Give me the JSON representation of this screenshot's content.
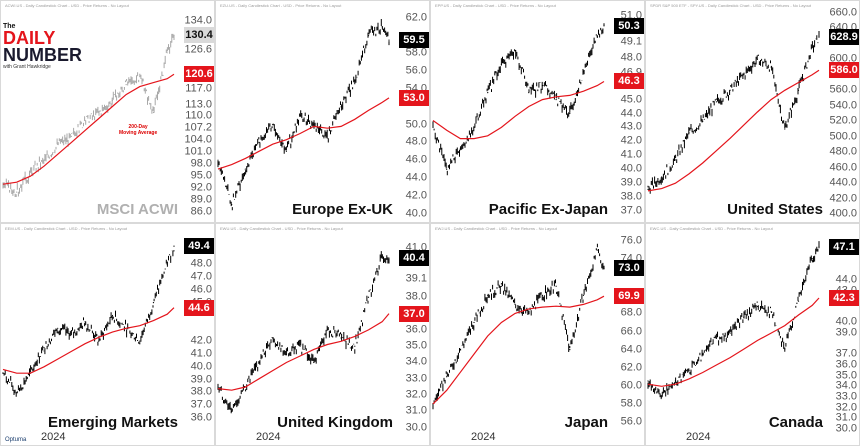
{
  "logo": {
    "line1": "The",
    "line2a": "DAILY",
    "line2b": "NUMBER",
    "line3": "with Grant Hawkridge"
  },
  "footer": "Optuma",
  "colors": {
    "price": "#000000",
    "ma": "#e4151c",
    "name_light": "#b0b0b0"
  },
  "chart_data": [
    {
      "type": "line",
      "name": "MSCI ACWI",
      "header": "ACWI.US - Daily Candlestick Chart - USD - Price Returns - No Layout",
      "year_label": "",
      "annotation": "200-Day\nMoving Average",
      "ylim": [
        84.5,
        137
      ],
      "ticks": [
        134.0,
        130.4,
        126.6,
        120.6,
        117.0,
        113.0,
        110.0,
        107.2,
        104.0,
        101.0,
        98.0,
        95.0,
        92.0,
        89.0,
        86.0
      ],
      "price_tag": 130.4,
      "ma_tag": 120.6,
      "x": [
        0,
        8,
        16,
        24,
        32,
        40,
        48,
        56,
        64,
        72,
        80,
        88,
        96,
        100
      ],
      "price": [
        93,
        91,
        96,
        99,
        103,
        105,
        109,
        111,
        114,
        118,
        120,
        111,
        126,
        130.4
      ],
      "ma": [
        93,
        93.5,
        95,
        97.5,
        100.5,
        103.5,
        106.5,
        109.5,
        112.5,
        115.5,
        117.5,
        118.5,
        119.5,
        120.6
      ]
    },
    {
      "type": "line",
      "name": "Europe Ex-UK",
      "header": "EZU.US - Daily Candlestick Chart - USD - Price Returns - No Layout",
      "year_label": "",
      "ylim": [
        39.5,
        63
      ],
      "ticks": [
        62.0,
        59.5,
        58.0,
        56.0,
        54.0,
        53.0,
        50.0,
        48.0,
        46.0,
        44.0,
        42.0,
        40.0
      ],
      "price_tag": 59.5,
      "ma_tag": 53.0,
      "x": [
        0,
        8,
        16,
        24,
        32,
        40,
        48,
        56,
        64,
        72,
        80,
        88,
        96,
        100
      ],
      "price": [
        46,
        41,
        45,
        48,
        50,
        47,
        51,
        50,
        48.5,
        52,
        55,
        60,
        61,
        59.5
      ],
      "ma": [
        45,
        45.5,
        46.2,
        47,
        47.8,
        48.3,
        49,
        49.8,
        49.6,
        49.8,
        50.6,
        51.6,
        52.5,
        53.0
      ]
    },
    {
      "type": "line",
      "name": "Pacific Ex-Japan",
      "header": "EPP.US - Daily Candlestick Chart - USD - Price Returns - No Layout",
      "year_label": "",
      "ylim": [
        36.5,
        51.5
      ],
      "ticks": [
        51.0,
        50.3,
        49.1,
        48.0,
        46.9,
        46.3,
        45.0,
        44.0,
        43.0,
        42.0,
        41.0,
        40.0,
        39.0,
        38.0,
        37.0
      ],
      "price_tag": 50.3,
      "ma_tag": 46.3,
      "x": [
        0,
        8,
        16,
        24,
        32,
        40,
        48,
        56,
        64,
        72,
        80,
        88,
        96,
        100
      ],
      "price": [
        43,
        40,
        41.5,
        43,
        45.5,
        47.5,
        48.5,
        45.5,
        46,
        45,
        44,
        47,
        49.5,
        50.3
      ],
      "ma": [
        43.5,
        42.8,
        42.2,
        42.2,
        42.4,
        43,
        43.8,
        44.5,
        45,
        45.2,
        45.3,
        45.6,
        46,
        46.3
      ]
    },
    {
      "type": "line",
      "name": "United States",
      "header": "SPDR S&P 500 ETF - SPY.US - Daily Candlestick Chart - USD - Price Returns - No Layout",
      "year_label": "",
      "ylim": [
        395,
        665
      ],
      "ticks": [
        660.0,
        640.0,
        628.9,
        600.0,
        586.0,
        560.0,
        540.0,
        520.0,
        500.0,
        480.0,
        460.0,
        440.0,
        420.0,
        400.0
      ],
      "price_tag": 628.9,
      "ma_tag": 586.0,
      "x": [
        0,
        8,
        16,
        24,
        32,
        40,
        48,
        56,
        64,
        72,
        80,
        88,
        96,
        100
      ],
      "price": [
        432,
        448,
        470,
        505,
        520,
        545,
        560,
        580,
        600,
        590,
        510,
        560,
        615,
        628.9
      ],
      "ma": [
        430,
        433,
        440,
        452,
        466,
        482,
        498,
        515,
        532,
        548,
        560,
        570,
        580,
        586
      ]
    },
    {
      "type": "line",
      "name": "Emerging Markets",
      "header": "EEM.US - Daily Candlestick Chart - USD - Price Returns - No Layout",
      "year_label": "2024",
      "ylim": [
        35,
        50.5
      ],
      "ticks": [
        49.4,
        48.0,
        47.0,
        46.0,
        45.0,
        44.6,
        42.0,
        41.0,
        40.0,
        39.0,
        38.0,
        37.0,
        36.0
      ],
      "price_tag": 49.4,
      "ma_tag": 44.6,
      "x": [
        0,
        8,
        16,
        24,
        32,
        40,
        48,
        56,
        64,
        72,
        80,
        88,
        96,
        100
      ],
      "price": [
        39.5,
        38,
        39.5,
        41.5,
        43,
        42.5,
        43.5,
        42,
        44,
        43,
        42,
        45,
        48,
        49.4
      ],
      "ma": [
        39.8,
        39.5,
        39.5,
        40,
        40.6,
        41.2,
        41.8,
        42.3,
        42.7,
        43,
        43.2,
        43.6,
        44.1,
        44.6
      ]
    },
    {
      "type": "line",
      "name": "United Kingdom",
      "header": "EWU.US - Daily Candlestick Chart - USD - Price Returns - No Layout",
      "year_label": "2024",
      "ylim": [
        29.8,
        42
      ],
      "ticks": [
        41.0,
        40.4,
        39.1,
        38.0,
        37.0,
        36.0,
        35.0,
        34.0,
        33.0,
        32.0,
        31.0,
        30.0
      ],
      "price_tag": 40.4,
      "ma_tag": 37.0,
      "x": [
        0,
        8,
        16,
        24,
        32,
        40,
        48,
        56,
        64,
        72,
        80,
        88,
        96,
        100
      ],
      "price": [
        32.5,
        31,
        32.5,
        34,
        35.5,
        34.5,
        35,
        34,
        36,
        35.5,
        35,
        38,
        40.5,
        40.4
      ],
      "ma": [
        32.4,
        32.3,
        32.5,
        33,
        33.5,
        34,
        34.4,
        34.8,
        35.1,
        35.3,
        35.6,
        36,
        36.5,
        37.0
      ]
    },
    {
      "type": "line",
      "name": "Japan",
      "header": "EWJ.US - Daily Candlestick Chart - USD - Price Returns - No Layout",
      "year_label": "2024",
      "ylim": [
        55,
        77
      ],
      "ticks": [
        76.0,
        74.0,
        73.0,
        69.9,
        68.0,
        66.0,
        64.0,
        62.0,
        60.0,
        58.0,
        56.0
      ],
      "price_tag": 73.0,
      "ma_tag": 69.9,
      "x": [
        0,
        8,
        16,
        24,
        32,
        40,
        48,
        56,
        64,
        72,
        80,
        88,
        96,
        100
      ],
      "price": [
        58,
        61,
        64,
        67,
        70,
        71,
        69,
        68,
        70,
        71,
        64,
        70,
        75,
        73.0
      ],
      "ma": [
        58,
        59.5,
        61.5,
        63.5,
        65.5,
        67,
        68,
        68.5,
        68.7,
        68.8,
        68.7,
        69,
        69.5,
        69.9
      ]
    },
    {
      "type": "line",
      "name": "Canada",
      "header": "EWC.US - Daily Candlestick Chart - USD - Price Returns - No Layout",
      "year_label": "2024",
      "ylim": [
        29.8,
        48.5
      ],
      "ticks": [
        47.1,
        44.0,
        43.0,
        42.3,
        40.0,
        39.0,
        37.0,
        36.0,
        35.0,
        34.0,
        33.0,
        32.0,
        31.0,
        30.0
      ],
      "price_tag": 47.1,
      "ma_tag": 42.3,
      "x": [
        0,
        8,
        16,
        24,
        32,
        40,
        48,
        56,
        64,
        72,
        80,
        88,
        96,
        100
      ],
      "price": [
        34.5,
        33,
        34.5,
        35.5,
        37,
        38.5,
        39,
        40.5,
        41.5,
        41,
        37.5,
        42,
        46,
        47.1
      ],
      "ma": [
        34.2,
        34,
        34.2,
        34.7,
        35.3,
        36,
        36.7,
        37.5,
        38.3,
        39,
        39.7,
        40.7,
        41.6,
        42.3
      ]
    }
  ]
}
